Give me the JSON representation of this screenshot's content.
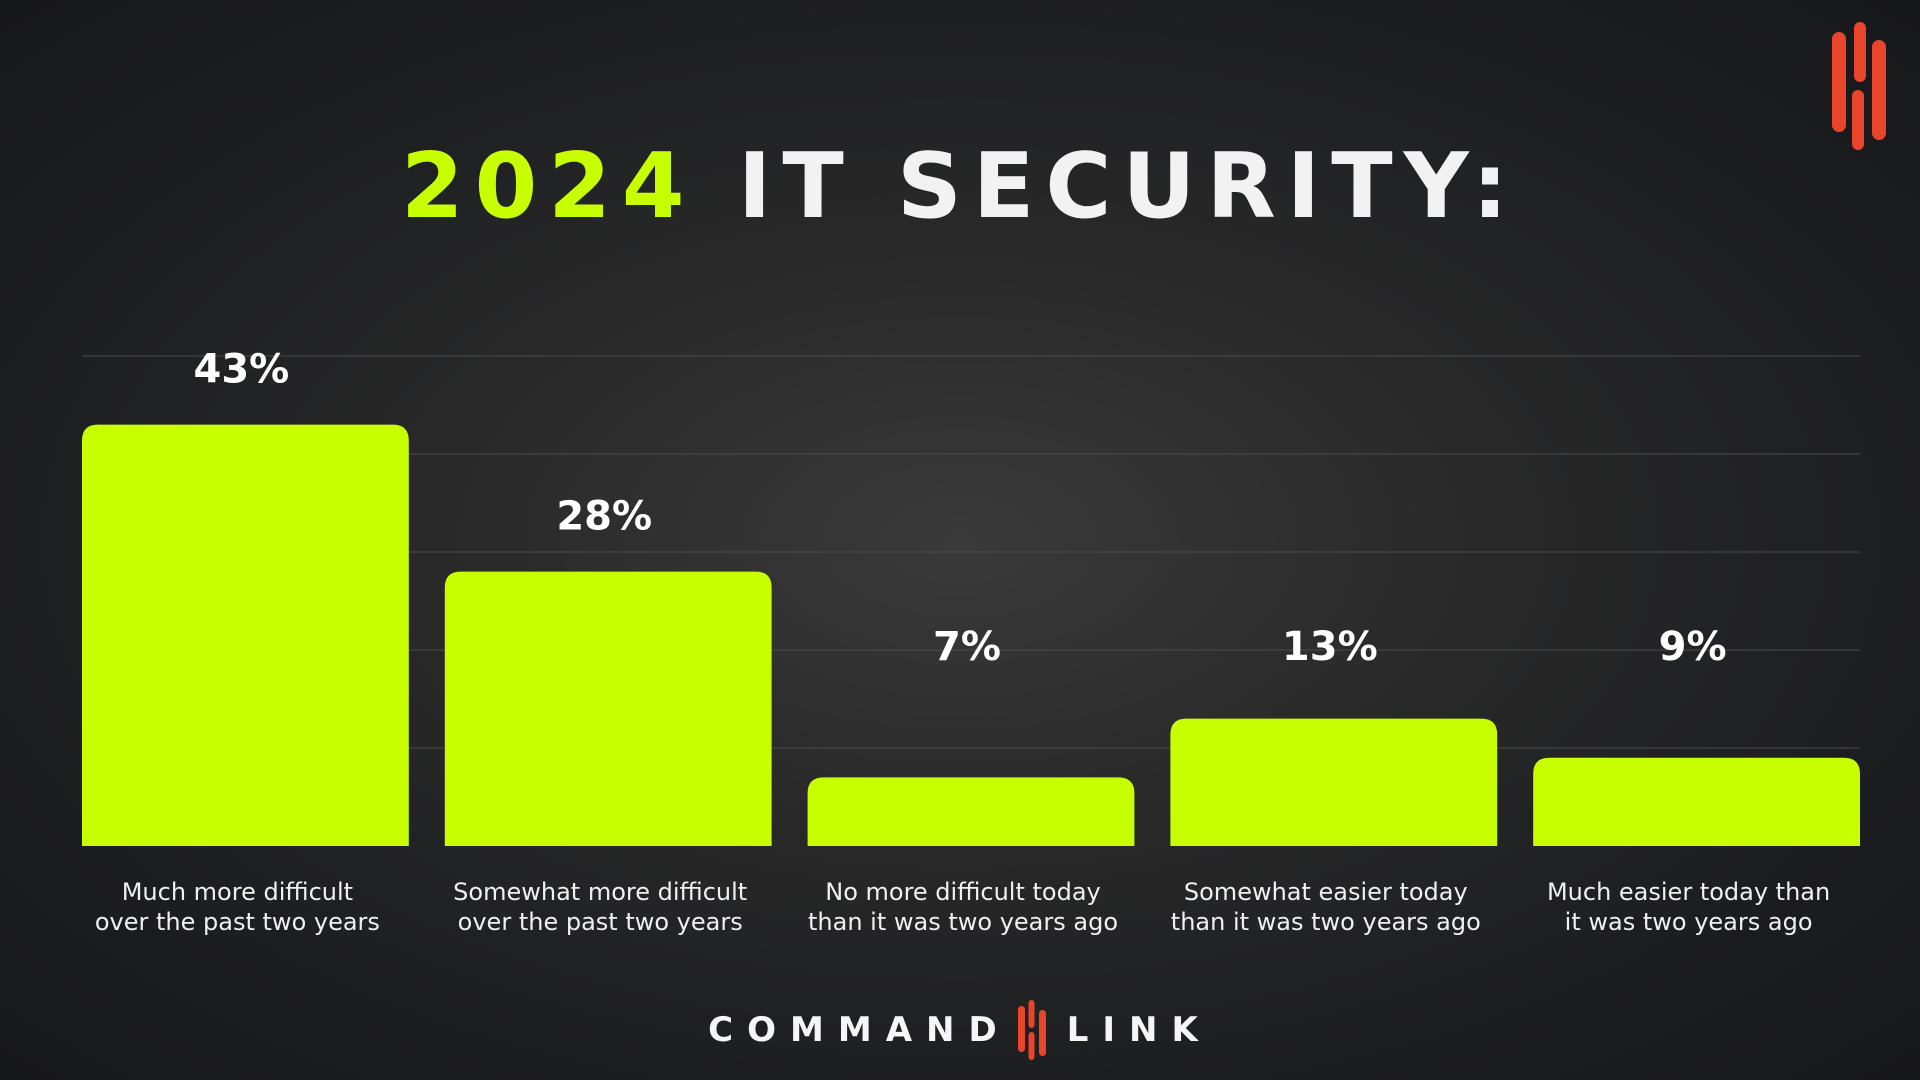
{
  "title": {
    "highlight": "2024",
    "rest": "IT SECURITY:"
  },
  "brand": {
    "word1": "COMMAND",
    "word2": "LINK",
    "logo_icon": "commandlink-logo-icon"
  },
  "colors": {
    "bar": "#c8ff00",
    "highlight": "#c8ff00",
    "logo": "#e8452a",
    "text": "#f2f2f2",
    "grid": "#4a4b4e"
  },
  "chart_data": {
    "type": "bar",
    "title": "2024 IT SECURITY:",
    "categories": [
      [
        "Much more difficult",
        "over the past two years"
      ],
      [
        "Somewhat more difficult",
        "over the past two years"
      ],
      [
        "No more difficult today",
        "than it was two years ago"
      ],
      [
        "Somewhat easier today",
        "than it was two years ago"
      ],
      [
        "Much easier today than",
        "it was two years ago"
      ]
    ],
    "values": [
      43,
      28,
      7,
      13,
      9
    ],
    "value_labels": [
      "43%",
      "28%",
      "7%",
      "13%",
      "9%"
    ],
    "ylim": [
      0,
      50
    ],
    "grid": true,
    "xlabel": "",
    "ylabel": ""
  }
}
